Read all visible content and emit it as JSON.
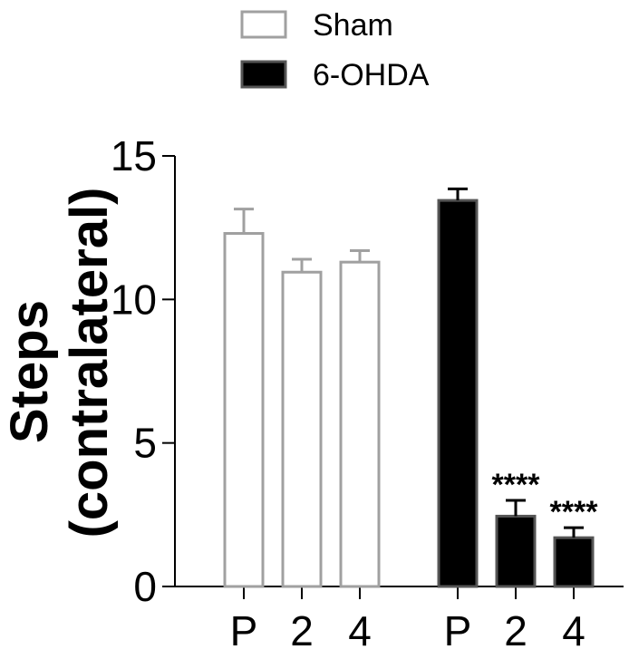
{
  "chart_data": {
    "type": "bar",
    "ylabel": "Steps",
    "ylabel_sub": "(contralateral)",
    "xlabel": "",
    "ylim": [
      0,
      15
    ],
    "yticks": [
      0,
      5,
      10,
      15
    ],
    "legend_position": "top-center",
    "groups": [
      {
        "series": "Sham",
        "categories": [
          "P",
          "2",
          "4"
        ],
        "values": [
          12.3,
          10.95,
          11.3
        ],
        "errors": [
          0.85,
          0.45,
          0.4
        ],
        "annotations": [
          "",
          "",
          ""
        ]
      },
      {
        "series": "6-OHDA",
        "categories": [
          "P",
          "2",
          "4"
        ],
        "values": [
          13.45,
          2.45,
          1.7
        ],
        "errors": [
          0.4,
          0.55,
          0.35
        ],
        "annotations": [
          "",
          "****",
          "****"
        ]
      }
    ],
    "series": [
      {
        "name": "Sham",
        "fill": "#ffffff",
        "stroke": "#a0a0a0"
      },
      {
        "name": "6-OHDA",
        "fill": "#000000",
        "stroke": "#555555"
      }
    ]
  }
}
